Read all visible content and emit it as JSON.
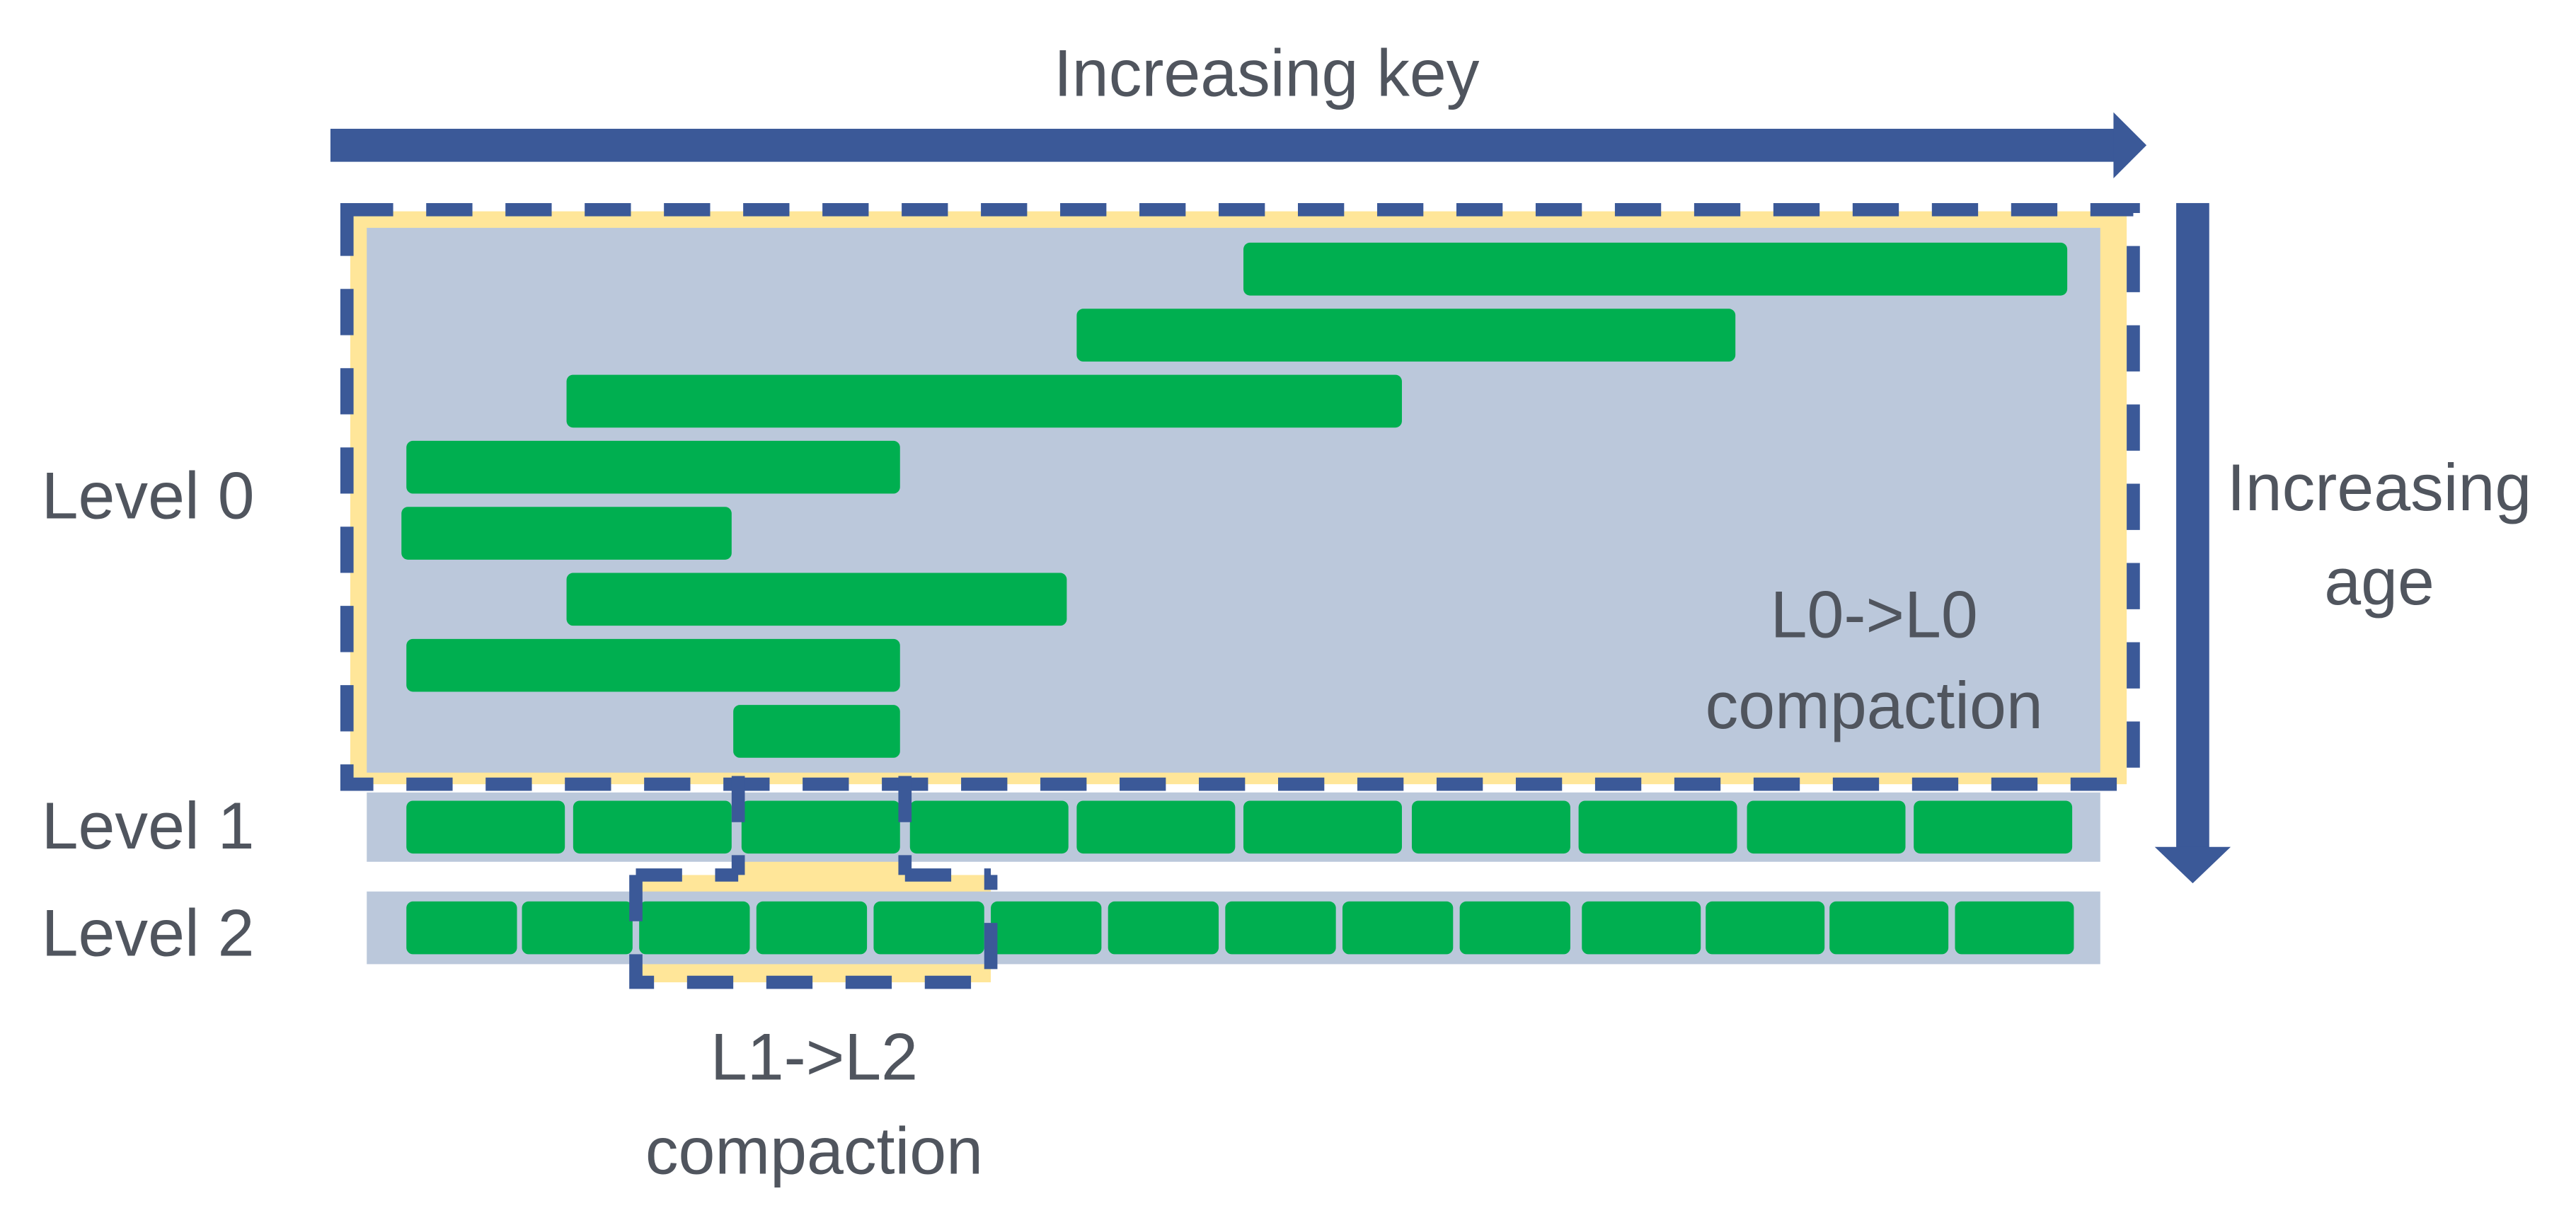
{
  "labels": {
    "key_axis": "Increasing key",
    "age_axis_line1": "Increasing",
    "age_axis_line2": "age",
    "level0": "Level 0",
    "level1": "Level 1",
    "level2": "Level 2",
    "l0_compaction_line1": "L0->L0",
    "l0_compaction_line2": "compaction",
    "l1_compaction_line1": "L1->L2",
    "l1_compaction_line2": "compaction"
  },
  "colors": {
    "arrow": "#3B5998",
    "highlight": "#FFE699",
    "level_band": "#BBC8DB",
    "sstable": "#00AF50",
    "text": "#50555E"
  },
  "level_counts": {
    "level0": 8,
    "level1": 10,
    "level2": 14
  }
}
